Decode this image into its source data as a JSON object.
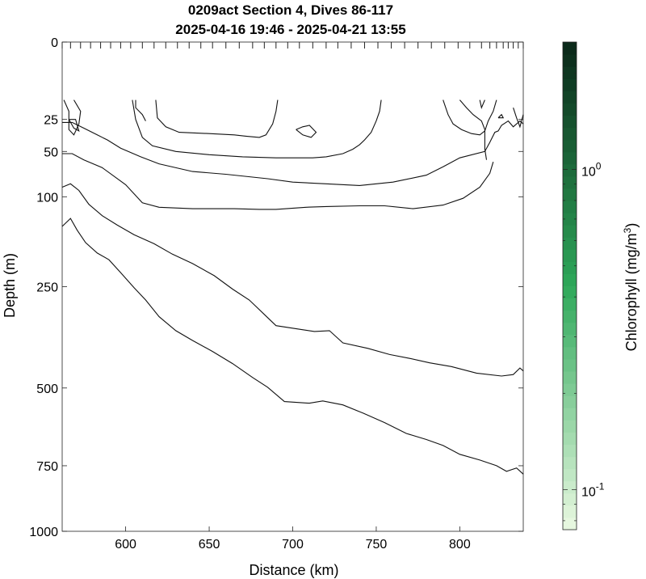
{
  "chart_data": {
    "type": "contour",
    "title": "0209act Section 4, Dives 86-117",
    "subtitle": "2025-04-16 19:46 - 2025-04-21 13:55",
    "xlabel": "Distance (km)",
    "ylabel": "Depth (m)",
    "xlim": [
      562,
      838
    ],
    "ylim": [
      0,
      1000
    ],
    "y_scale": "sqrt",
    "x_ticks": [
      600,
      650,
      700,
      750,
      800
    ],
    "y_ticks": [
      0,
      25,
      50,
      100,
      250,
      500,
      750,
      1000
    ],
    "dive_marks_km": [
      562,
      567,
      573,
      579,
      585,
      591,
      597,
      603,
      610,
      617,
      624,
      631,
      638,
      645,
      652,
      660,
      668,
      676,
      683,
      690,
      697,
      704,
      712,
      720,
      727,
      735,
      743,
      751,
      759,
      767,
      775,
      783,
      791,
      799,
      806,
      813,
      818,
      822,
      826,
      829,
      832,
      835,
      838
    ],
    "colorbar": {
      "label": "Chlorophyll (mg/m",
      "label_sup": "3",
      "label_end": ")",
      "scale": "log",
      "range": [
        0.075,
        2.5
      ],
      "tick_labels": [
        {
          "base": "10",
          "exp": "-1",
          "value": 0.1
        },
        {
          "base": "10",
          "exp": "0",
          "value": 1
        }
      ],
      "color_low": "#e6f7df",
      "color_mid": "#2ea85a",
      "color_high": "#0b2a1a",
      "levels": 40
    },
    "contours": [
      {
        "name": "upper-left",
        "points": [
          [
            563,
            14
          ],
          [
            566,
            20
          ],
          [
            566,
            25
          ],
          [
            566,
            32
          ],
          [
            569,
            36
          ],
          [
            572,
            28
          ],
          [
            573,
            20
          ],
          [
            569,
            14
          ]
        ]
      },
      {
        "name": "upper-left-closed",
        "points": [
          [
            566,
            25
          ],
          [
            569,
            31
          ],
          [
            572,
            33
          ],
          [
            570,
            25
          ],
          [
            566,
            25
          ]
        ]
      },
      {
        "name": "upper-mid",
        "points": [
          [
            604,
            14
          ],
          [
            606,
            25
          ],
          [
            610,
            38
          ],
          [
            616,
            45
          ],
          [
            630,
            50
          ],
          [
            650,
            53
          ],
          [
            670,
            55
          ],
          [
            690,
            56
          ],
          [
            706,
            56
          ],
          [
            712,
            56
          ],
          [
            720,
            55
          ],
          [
            730,
            52
          ],
          [
            736,
            48
          ],
          [
            740,
            44
          ],
          [
            743,
            40
          ],
          [
            747,
            34
          ],
          [
            750,
            26
          ],
          [
            752,
            20
          ],
          [
            753,
            14
          ]
        ]
      },
      {
        "name": "upper-mid-hook",
        "points": [
          [
            606,
            14
          ],
          [
            606,
            18
          ],
          [
            610,
            22
          ],
          [
            612,
            26
          ]
        ]
      },
      {
        "name": "inner-bowl",
        "points": [
          [
            618,
            14
          ],
          [
            619,
            24
          ],
          [
            624,
            30
          ],
          [
            632,
            34
          ],
          [
            650,
            35
          ],
          [
            665,
            36
          ],
          [
            672,
            37
          ],
          [
            680,
            38
          ],
          [
            684,
            36
          ],
          [
            688,
            28
          ],
          [
            690,
            20
          ],
          [
            691,
            14
          ]
        ]
      },
      {
        "name": "small-closed",
        "points": [
          [
            702,
            32
          ],
          [
            706,
            36
          ],
          [
            711,
            38
          ],
          [
            714,
            34
          ],
          [
            710,
            29
          ],
          [
            706,
            30
          ],
          [
            702,
            32
          ]
        ]
      },
      {
        "name": "right-upper",
        "points": [
          [
            790,
            14
          ],
          [
            793,
            22
          ],
          [
            796,
            28
          ],
          [
            801,
            32
          ],
          [
            807,
            35
          ],
          [
            812,
            36
          ],
          [
            815,
            33
          ],
          [
            817,
            26
          ],
          [
            820,
            20
          ],
          [
            822,
            14
          ]
        ]
      },
      {
        "name": "right-upper-2",
        "points": [
          [
            800,
            14
          ],
          [
            804,
            18
          ],
          [
            808,
            22
          ],
          [
            813,
            26
          ],
          [
            815,
            32
          ],
          [
            815,
            40
          ],
          [
            815,
            48
          ],
          [
            816,
            58
          ]
        ]
      },
      {
        "name": "right-upper-3",
        "points": [
          [
            812,
            14
          ],
          [
            813,
            18
          ],
          [
            815,
            14
          ]
        ]
      },
      {
        "name": "right-edge-wiggle",
        "points": [
          [
            823,
            24
          ],
          [
            825,
            22
          ],
          [
            826,
            24
          ],
          [
            823,
            24
          ]
        ]
      },
      {
        "name": "right-edge-top",
        "points": [
          [
            832,
            18
          ],
          [
            834,
            24
          ],
          [
            836,
            30
          ],
          [
            838,
            22
          ]
        ]
      },
      {
        "name": "mid-line-1",
        "points": [
          [
            562,
            27
          ],
          [
            568,
            27
          ],
          [
            575,
            31
          ],
          [
            583,
            36
          ],
          [
            589,
            40
          ],
          [
            597,
            47
          ],
          [
            609,
            55
          ],
          [
            620,
            62
          ],
          [
            640,
            70
          ],
          [
            660,
            73
          ],
          [
            685,
            78
          ],
          [
            700,
            82
          ],
          [
            720,
            84
          ],
          [
            740,
            86
          ],
          [
            760,
            82
          ],
          [
            780,
            74
          ],
          [
            790,
            65
          ],
          [
            800,
            56
          ],
          [
            815,
            50
          ],
          [
            818,
            42
          ],
          [
            821,
            34
          ],
          [
            823,
            33
          ],
          [
            825,
            29
          ],
          [
            829,
            26
          ],
          [
            832,
            30
          ],
          [
            836,
            26
          ],
          [
            838,
            28
          ]
        ]
      },
      {
        "name": "mid-line-2",
        "points": [
          [
            562,
            52
          ],
          [
            568,
            52
          ],
          [
            575,
            58
          ],
          [
            586,
            66
          ],
          [
            600,
            85
          ],
          [
            610,
            108
          ],
          [
            620,
            114
          ],
          [
            640,
            116
          ],
          [
            665,
            116
          ],
          [
            680,
            117
          ],
          [
            690,
            117
          ],
          [
            708,
            114
          ],
          [
            720,
            113
          ],
          [
            740,
            112
          ],
          [
            755,
            112
          ],
          [
            772,
            116
          ],
          [
            790,
            111
          ],
          [
            802,
            102
          ],
          [
            812,
            88
          ],
          [
            818,
            72
          ],
          [
            820,
            60
          ]
        ]
      },
      {
        "name": "lower-line-1",
        "points": [
          [
            562,
            88
          ],
          [
            567,
            84
          ],
          [
            572,
            92
          ],
          [
            578,
            110
          ],
          [
            586,
            126
          ],
          [
            595,
            140
          ],
          [
            605,
            155
          ],
          [
            617,
            170
          ],
          [
            628,
            188
          ],
          [
            640,
            205
          ],
          [
            653,
            228
          ],
          [
            664,
            255
          ],
          [
            674,
            278
          ],
          [
            683,
            310
          ],
          [
            690,
            336
          ],
          [
            705,
            345
          ],
          [
            713,
            350
          ],
          [
            722,
            348
          ],
          [
            730,
            378
          ],
          [
            745,
            392
          ],
          [
            758,
            408
          ],
          [
            770,
            418
          ],
          [
            782,
            430
          ],
          [
            795,
            440
          ],
          [
            810,
            458
          ],
          [
            825,
            466
          ],
          [
            832,
            462
          ],
          [
            836,
            444
          ],
          [
            838,
            452
          ]
        ]
      },
      {
        "name": "lower-line-2",
        "points": [
          [
            562,
            142
          ],
          [
            567,
            130
          ],
          [
            571,
            148
          ],
          [
            576,
            168
          ],
          [
            583,
            186
          ],
          [
            590,
            198
          ],
          [
            597,
            222
          ],
          [
            605,
            252
          ],
          [
            612,
            278
          ],
          [
            620,
            315
          ],
          [
            630,
            348
          ],
          [
            640,
            372
          ],
          [
            652,
            400
          ],
          [
            664,
            432
          ],
          [
            676,
            470
          ],
          [
            685,
            498
          ],
          [
            695,
            540
          ],
          [
            710,
            545
          ],
          [
            718,
            538
          ],
          [
            730,
            550
          ],
          [
            742,
            575
          ],
          [
            755,
            605
          ],
          [
            768,
            640
          ],
          [
            780,
            660
          ],
          [
            790,
            680
          ],
          [
            800,
            710
          ],
          [
            812,
            730
          ],
          [
            822,
            750
          ],
          [
            828,
            770
          ],
          [
            834,
            758
          ],
          [
            838,
            780
          ]
        ]
      }
    ]
  }
}
